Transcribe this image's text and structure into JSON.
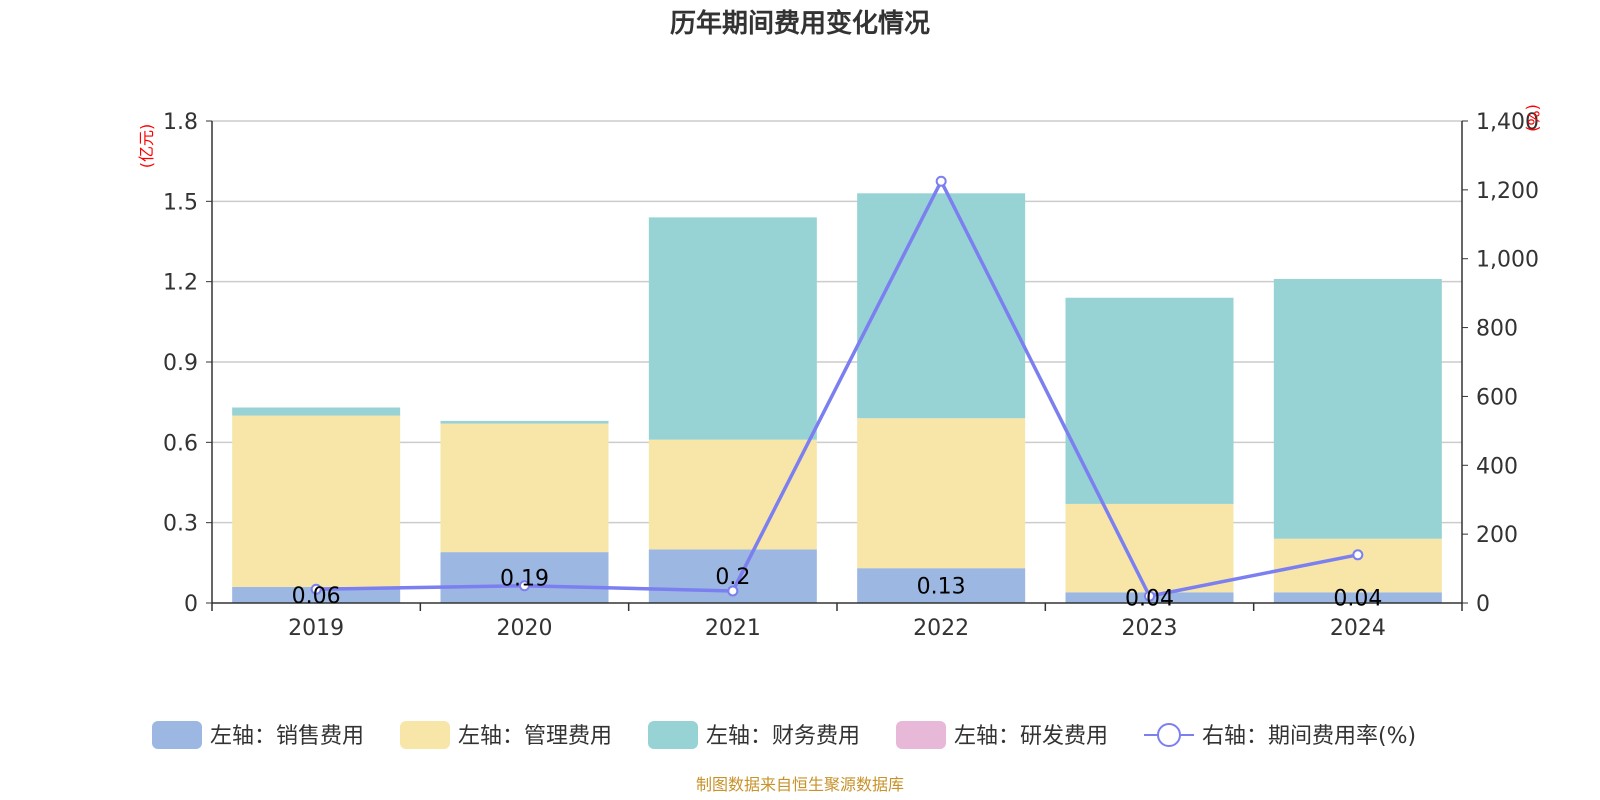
{
  "chart_data": {
    "type": "bar",
    "title": "历年期间费用变化情况",
    "categories": [
      "2019",
      "2020",
      "2021",
      "2022",
      "2023",
      "2024"
    ],
    "left_axis": {
      "unit": "(亿元)",
      "ylim": [
        0,
        1.8
      ],
      "ticks": [
        "0",
        "0.3",
        "0.6",
        "0.9",
        "1.2",
        "1.5",
        "1.8"
      ]
    },
    "right_axis": {
      "unit": "(%)",
      "ylim": [
        0,
        1400
      ],
      "ticks": [
        "0",
        "200",
        "400",
        "600",
        "800",
        "1,000",
        "1,200",
        "1,400"
      ]
    },
    "series": [
      {
        "name": "左轴：销售费用",
        "kind": "bar",
        "color": "#9bb7e2",
        "values": [
          0.06,
          0.19,
          0.2,
          0.13,
          0.04,
          0.04
        ],
        "labels": [
          "0.06",
          "0.19",
          "0.2",
          "0.13",
          "0.04",
          "0.04"
        ]
      },
      {
        "name": "左轴：管理费用",
        "kind": "bar",
        "color": "#f7e6a8",
        "values": [
          0.64,
          0.48,
          0.41,
          0.56,
          0.33,
          0.2
        ]
      },
      {
        "name": "左轴：财务费用",
        "kind": "bar",
        "color": "#97d3d4",
        "values": [
          0.03,
          0.01,
          0.83,
          0.84,
          0.77,
          0.97
        ]
      },
      {
        "name": "左轴：研发费用",
        "kind": "bar",
        "color": "#e8b8d8",
        "values": [
          0,
          0,
          0,
          0,
          0,
          0
        ]
      },
      {
        "name": "右轴：期间费用率(%)",
        "kind": "line",
        "color": "#7b7ff0",
        "values": [
          40,
          50,
          35,
          1225,
          20,
          140
        ]
      }
    ],
    "grid": true,
    "legend_position": "bottom"
  },
  "source": "制图数据来自恒生聚源数据库"
}
